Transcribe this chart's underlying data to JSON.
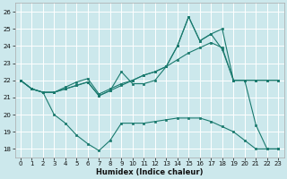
{
  "xlabel": "Humidex (Indice chaleur)",
  "bg_color": "#cce8ec",
  "grid_color": "#ffffff",
  "line_color": "#1a7a6e",
  "xlim": [
    -0.5,
    23.5
  ],
  "ylim": [
    17.5,
    26.5
  ],
  "yticks": [
    18,
    19,
    20,
    21,
    22,
    23,
    24,
    25,
    26
  ],
  "xticks": [
    0,
    1,
    2,
    3,
    4,
    5,
    6,
    7,
    8,
    9,
    10,
    11,
    12,
    13,
    14,
    15,
    16,
    17,
    18,
    19,
    20,
    21,
    22,
    23
  ],
  "line1_x": [
    0,
    1,
    2,
    3,
    4,
    5,
    6,
    7,
    8,
    9,
    10,
    11,
    12,
    13,
    14,
    15,
    16,
    17,
    18,
    19,
    20,
    21,
    22,
    23
  ],
  "line1_y": [
    22.0,
    21.5,
    21.3,
    21.3,
    21.5,
    21.7,
    21.9,
    21.1,
    21.4,
    22.5,
    21.8,
    21.8,
    22.0,
    22.8,
    24.0,
    25.7,
    24.3,
    24.7,
    23.8,
    22.0,
    22.0,
    19.4,
    18.0,
    18.0
  ],
  "line2_x": [
    0,
    1,
    2,
    3,
    4,
    5,
    6,
    7,
    8,
    9,
    10,
    11,
    12,
    13,
    14,
    15,
    16,
    17,
    18,
    19,
    20,
    21,
    22,
    23
  ],
  "line2_y": [
    22.0,
    21.5,
    21.3,
    20.0,
    19.5,
    18.8,
    18.3,
    17.9,
    18.5,
    19.5,
    19.5,
    19.5,
    19.6,
    19.7,
    19.8,
    19.8,
    19.8,
    19.6,
    19.3,
    19.0,
    18.5,
    18.0,
    18.0,
    18.0
  ],
  "line3_x": [
    0,
    1,
    2,
    3,
    4,
    5,
    6,
    7,
    8,
    9,
    10,
    11,
    12,
    13,
    14,
    15,
    16,
    17,
    18,
    19,
    20,
    21,
    22,
    23
  ],
  "line3_y": [
    22.0,
    21.5,
    21.3,
    21.3,
    21.6,
    21.9,
    22.1,
    21.2,
    21.5,
    21.8,
    22.0,
    22.3,
    22.5,
    22.8,
    23.2,
    23.6,
    23.9,
    24.2,
    23.9,
    22.0,
    22.0,
    22.0,
    22.0,
    22.0
  ],
  "line4_x": [
    0,
    1,
    2,
    3,
    4,
    5,
    6,
    7,
    8,
    9,
    10,
    11,
    12,
    13,
    14,
    15,
    16,
    17,
    18,
    19,
    20,
    21,
    22,
    23
  ],
  "line4_y": [
    22.0,
    21.5,
    21.3,
    21.3,
    21.5,
    21.7,
    21.9,
    21.1,
    21.4,
    21.7,
    22.0,
    22.3,
    22.5,
    22.8,
    24.0,
    25.7,
    24.3,
    24.7,
    25.0,
    22.0,
    22.0,
    22.0,
    22.0,
    22.0
  ]
}
